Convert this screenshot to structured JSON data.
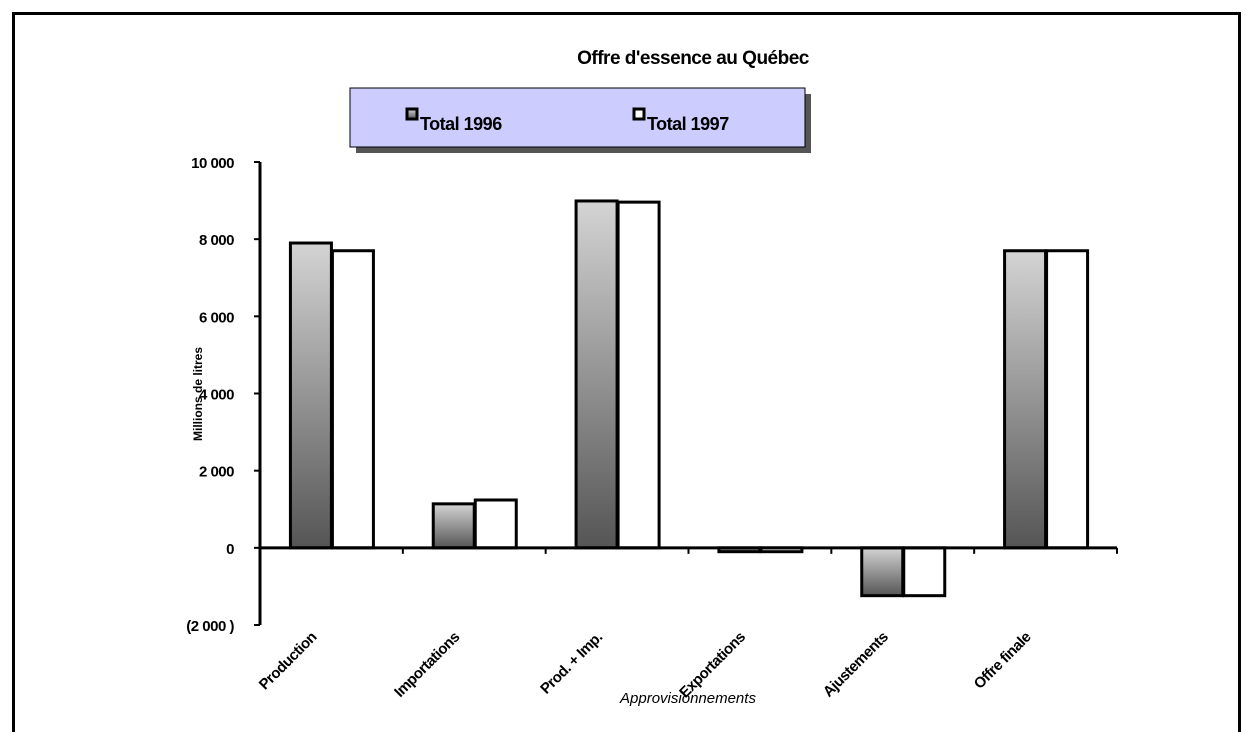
{
  "chart_data": {
    "type": "bar",
    "title": "Offre d'essence au Québec",
    "x_label": "Approvisionnements",
    "y_label": "Millions de litres",
    "categories": [
      "Production",
      "Importations",
      "Prod. + Imp.",
      "Exportations",
      "Ajustements",
      "Offre finale"
    ],
    "series": [
      {
        "name": "Total 1996",
        "color": "#555555",
        "values": [
          7900,
          1140,
          8990,
          -100,
          -1240,
          7700
        ]
      },
      {
        "name": "Total 1997",
        "color": "#ffffff",
        "values": [
          7700,
          1240,
          8960,
          -100,
          -1240,
          7700
        ]
      }
    ],
    "ylim": [
      -2000,
      10000
    ],
    "yticks": [
      {
        "value": -2000,
        "label": "(2 000 )"
      },
      0,
      {
        "value": 2000,
        "label": "2 000"
      },
      {
        "value": 4000,
        "label": "4 000"
      },
      {
        "value": 6000,
        "label": "6 000"
      },
      {
        "value": 8000,
        "label": "8 000"
      },
      {
        "value": 10000,
        "label": "10 000"
      }
    ],
    "legend": "top"
  }
}
